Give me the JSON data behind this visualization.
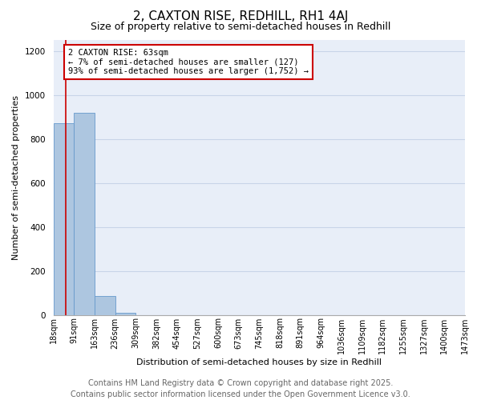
{
  "title": "2, CAXTON RISE, REDHILL, RH1 4AJ",
  "subtitle": "Size of property relative to semi-detached houses in Redhill",
  "xlabel": "Distribution of semi-detached houses by size in Redhill",
  "ylabel": "Number of semi-detached properties",
  "bins": [
    "18sqm",
    "91sqm",
    "163sqm",
    "236sqm",
    "309sqm",
    "382sqm",
    "454sqm",
    "527sqm",
    "600sqm",
    "673sqm",
    "745sqm",
    "818sqm",
    "891sqm",
    "964sqm",
    "1036sqm",
    "1109sqm",
    "1182sqm",
    "1255sqm",
    "1327sqm",
    "1400sqm",
    "1473sqm"
  ],
  "values": [
    870,
    920,
    85,
    10,
    0,
    0,
    0,
    0,
    0,
    0,
    0,
    0,
    0,
    0,
    0,
    0,
    0,
    0,
    0,
    0
  ],
  "bar_color": "#adc6e0",
  "bar_edge_color": "#6699cc",
  "vline_color": "#cc0000",
  "annotation_text": "2 CAXTON RISE: 63sqm\n← 7% of semi-detached houses are smaller (127)\n93% of semi-detached houses are larger (1,752) →",
  "annotation_box_color": "#cc0000",
  "ylim": [
    0,
    1250
  ],
  "yticks": [
    0,
    200,
    400,
    600,
    800,
    1000,
    1200
  ],
  "grid_color": "#c8d4e8",
  "background_color": "#e8eef8",
  "footer_line1": "Contains HM Land Registry data © Crown copyright and database right 2025.",
  "footer_line2": "Contains public sector information licensed under the Open Government Licence v3.0.",
  "title_fontsize": 11,
  "subtitle_fontsize": 9,
  "axis_label_fontsize": 8,
  "tick_fontsize": 7,
  "footer_fontsize": 7
}
